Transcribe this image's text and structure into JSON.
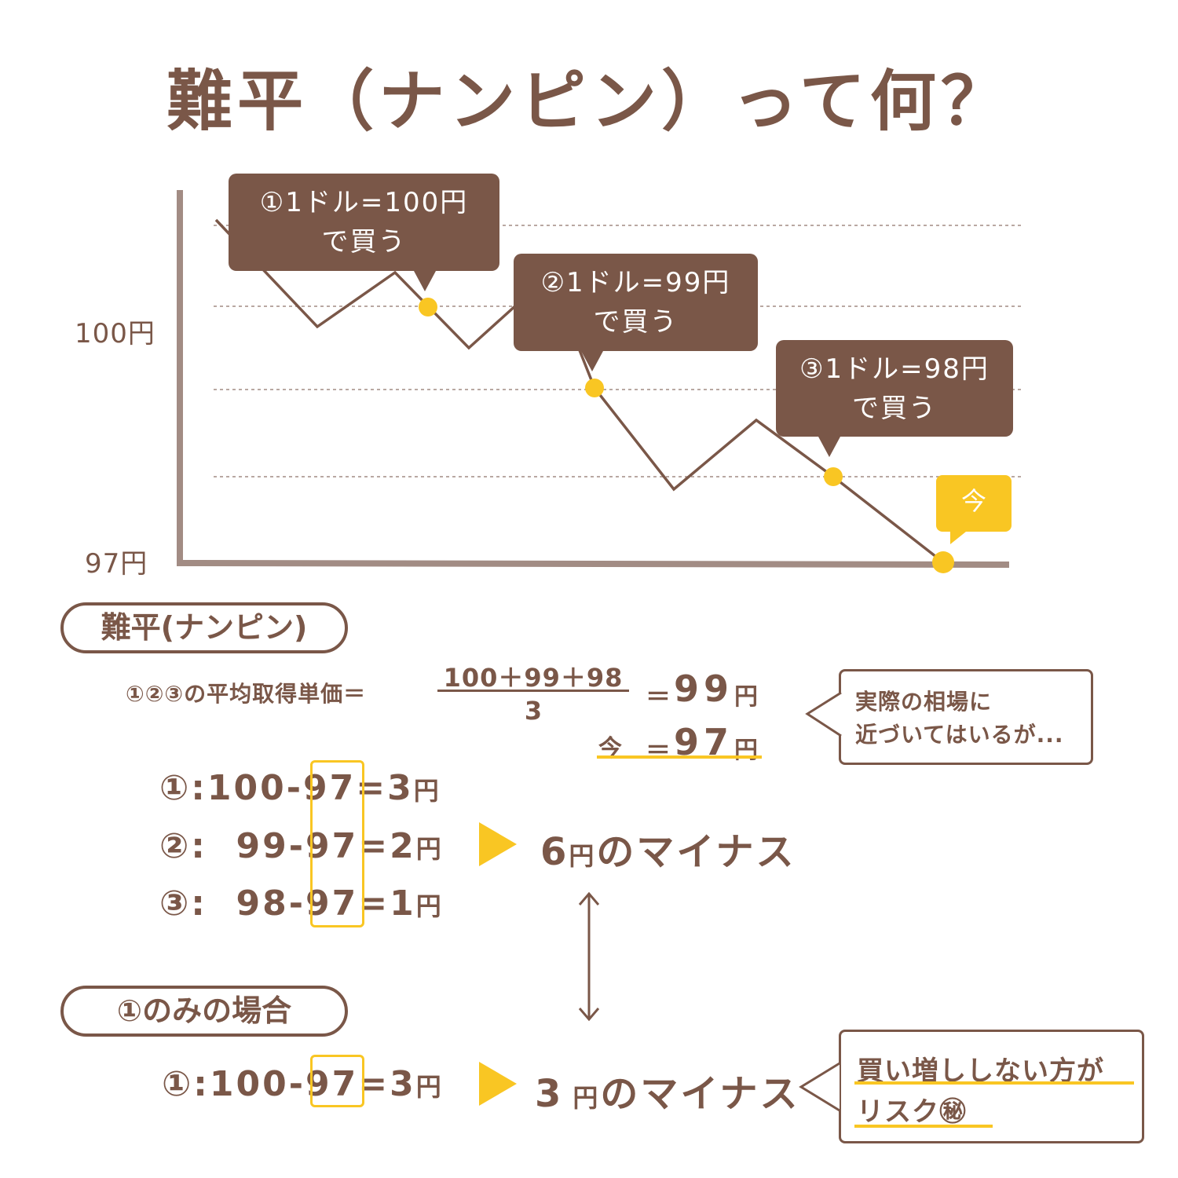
{
  "title": "難平（ナンピン）って何？",
  "chart": {
    "y_labels": [
      "100円",
      "97円"
    ],
    "callouts": [
      {
        "line1": "①1ドル=100円",
        "line2": "で買う"
      },
      {
        "line1": "②1ドル=99円",
        "line2": "で買う"
      },
      {
        "line1": "③1ドル=98円",
        "line2": "で買う"
      }
    ],
    "now_label": "今",
    "colors": {
      "line": "#7a5748",
      "axis": "#a28c84",
      "point": "#f9c623",
      "grid": "#a28c84"
    }
  },
  "section1": {
    "label": "難平(ナンピン)",
    "avg_label": "①②③の平均取得単価＝",
    "numerator": "100＋99＋98",
    "denominator": "3",
    "avg_eq": "＝",
    "avg_value": "99",
    "avg_unit": "円",
    "now_label": "今",
    "now_eq": "＝",
    "now_value": "97",
    "now_unit": "円",
    "note_line1": "実際の相場に",
    "note_line2": "近づいてはいるが...",
    "rows": [
      {
        "prefix": "①:100-",
        "base": "97",
        "result": "=3",
        "unit": "円"
      },
      {
        "prefix": "②:  99-",
        "base": "97",
        "result": "=2",
        "unit": "円"
      },
      {
        "prefix": "③:  98-",
        "base": "97",
        "result": "=1",
        "unit": "円"
      }
    ],
    "total_value": "6",
    "total_unit": "円",
    "total_text": "のマイナス"
  },
  "section2": {
    "label": "①のみの場合",
    "row": {
      "prefix": "①:100-",
      "base": "97",
      "result": "=3",
      "unit": "円"
    },
    "total_value": "3",
    "total_unit": "円",
    "total_text": "のマイナス",
    "note_line1": "買い増ししない方が",
    "note_line2": "リスク㊙"
  }
}
